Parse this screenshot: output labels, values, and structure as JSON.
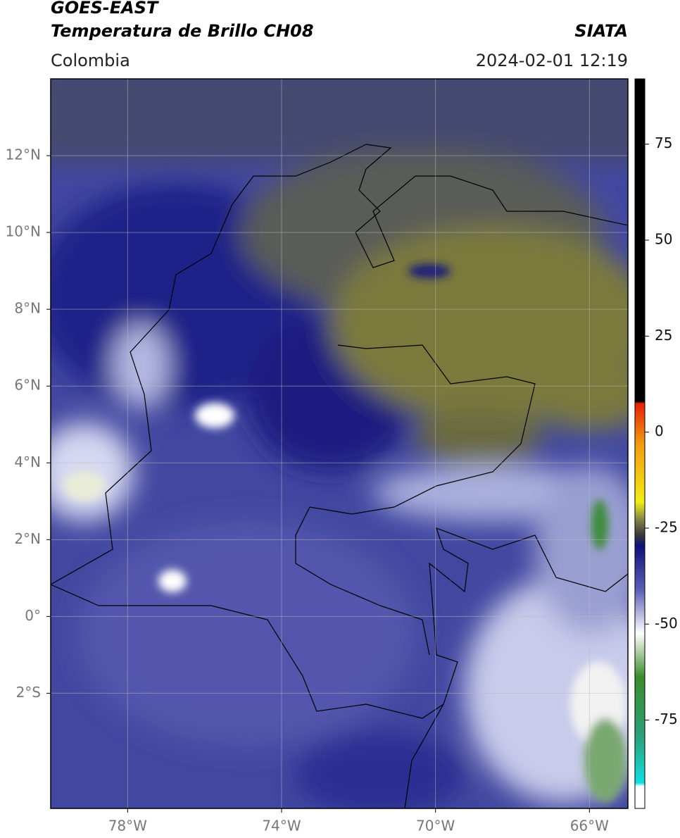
{
  "header": {
    "title": "GOES-EAST",
    "subtitle": "Temperatura de Brillo CH08",
    "source": "SIATA",
    "region": "Colombia",
    "datetime": "2024-02-01 12:19"
  },
  "map": {
    "xlim": [
      -80,
      -65
    ],
    "ylim": [
      -5,
      14
    ],
    "xticks": [
      {
        "value": -78,
        "label": "78°W"
      },
      {
        "value": -74,
        "label": "74°W"
      },
      {
        "value": -70,
        "label": "70°W"
      },
      {
        "value": -66,
        "label": "66°W"
      }
    ],
    "yticks": [
      {
        "value": 12,
        "label": "12°N"
      },
      {
        "value": 10,
        "label": "10°N"
      },
      {
        "value": 8,
        "label": "8°N"
      },
      {
        "value": 6,
        "label": "6°N"
      },
      {
        "value": 4,
        "label": "4°N"
      },
      {
        "value": 2,
        "label": "2°N"
      },
      {
        "value": 0,
        "label": "0°"
      },
      {
        "value": -2,
        "label": "2°S"
      }
    ],
    "grid": true
  },
  "colorbar": {
    "lim": [
      -98,
      92
    ],
    "ticks": [
      75,
      50,
      25,
      0,
      -25,
      -50,
      -75
    ]
  }
}
